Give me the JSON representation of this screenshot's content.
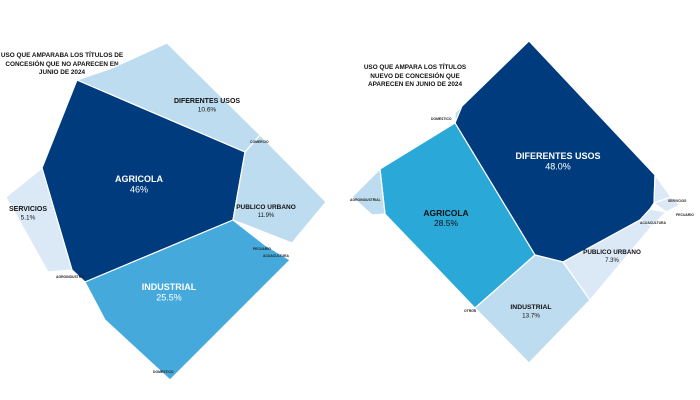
{
  "colors": {
    "darkest": "#003b7e",
    "medium": "#2aa8d8",
    "mid_light": "#45a9db",
    "light": "#bedcef",
    "pale": "#dbe9f7",
    "label_dark": "#111111",
    "label_light": "#ffffff"
  },
  "chart_data": [
    {
      "type": "voronoi-treemap",
      "title": "USO QUE AMPARABA LOS TÍTULOS DE CONCESIÓN QUE NO APARECEN EN JUNIO DE 2024",
      "cells": [
        {
          "name": "AGRICOLA",
          "value": 46,
          "label": "46%"
        },
        {
          "name": "INDUSTRIAL",
          "value": 25.5,
          "label": "25.5%"
        },
        {
          "name": "PUBLICO URBANO",
          "value": 11.9,
          "label": "11.9%"
        },
        {
          "name": "DIFERENTES USOS",
          "value": 10.6,
          "label": "10.6%"
        },
        {
          "name": "SERVICIOS",
          "value": 5.1,
          "label": "5.1%"
        }
      ],
      "minor_labels": [
        "COMERCIO",
        "PECUARIO",
        "ACUACULTURA",
        "AGROINDUSTRIA",
        "DOMESTICO"
      ]
    },
    {
      "type": "voronoi-treemap",
      "title": "USO QUE AMPARA LOS TÍTULOS NUEVO DE CONCESIÓN QUE APARECEN EN JUNIO DE 2024",
      "cells": [
        {
          "name": "DIFERENTES USOS",
          "value": 48.0,
          "label": "48.0%"
        },
        {
          "name": "AGRICOLA",
          "value": 28.5,
          "label": "28.5%"
        },
        {
          "name": "INDUSTRIAL",
          "value": 13.7,
          "label": "13.7%"
        },
        {
          "name": "PUBLICO URBANO",
          "value": 7.3,
          "label": "7.3%"
        },
        {
          "name": "SERVICIOS",
          "value": null,
          "label": ""
        },
        {
          "name": "PECUARIO",
          "value": null,
          "label": ""
        },
        {
          "name": "ACUACULTURA",
          "value": null,
          "label": ""
        },
        {
          "name": "AGROINDUSTRIAL",
          "value": null,
          "label": ""
        },
        {
          "name": "DOMESTICO",
          "value": null,
          "label": ""
        },
        {
          "name": "OTROS",
          "value": null,
          "label": ""
        }
      ],
      "minor_labels": [
        "SERVICIOS",
        "PECUARIO",
        "ACUACULTURA",
        "AGROINDUSTRIAL",
        "DOMESTICO",
        "OTROS"
      ]
    }
  ]
}
